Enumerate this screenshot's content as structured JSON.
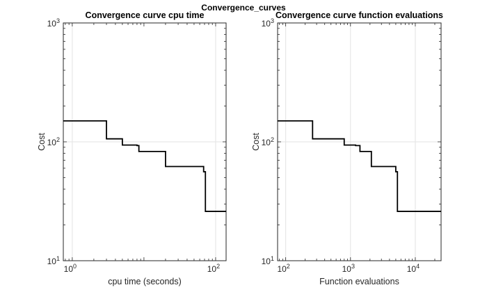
{
  "figure": {
    "suptitle": "Convergence_curves"
  },
  "chart_data": [
    {
      "type": "line",
      "title": "Convergence curve cpu time",
      "xlabel": "cpu time (seconds)",
      "ylabel": "Cost",
      "xscale": "log",
      "yscale": "log",
      "xlim": [
        0.75,
        140
      ],
      "ylim": [
        10,
        1000
      ],
      "xticks": [
        {
          "value": 1,
          "base": "10",
          "exp": "0"
        },
        {
          "value": 100,
          "base": "10",
          "exp": "2"
        }
      ],
      "yticks": [
        {
          "value": 10,
          "base": "10",
          "exp": "1"
        },
        {
          "value": 100,
          "base": "10",
          "exp": "2"
        },
        {
          "value": 1000,
          "base": "10",
          "exp": "3"
        }
      ],
      "grid": true,
      "color": "#000000",
      "x": [
        0.75,
        3,
        3,
        5,
        5,
        8,
        8,
        8.5,
        8.5,
        20,
        20,
        68,
        68,
        72,
        72,
        140
      ],
      "y": [
        150,
        150,
        106,
        106,
        94,
        94,
        93,
        93,
        83,
        83,
        62,
        62,
        56,
        56,
        26,
        26
      ]
    },
    {
      "type": "line",
      "title": "Convergence curve function evaluations",
      "xlabel": "Function evaluations",
      "ylabel": "Cost",
      "xscale": "log",
      "yscale": "log",
      "xlim": [
        75,
        25000
      ],
      "ylim": [
        10,
        1000
      ],
      "xticks": [
        {
          "value": 100,
          "base": "10",
          "exp": "2"
        },
        {
          "value": 1000,
          "base": "10",
          "exp": "3"
        },
        {
          "value": 10000,
          "base": "10",
          "exp": "4"
        }
      ],
      "yticks": [
        {
          "value": 10,
          "base": "10",
          "exp": "1"
        },
        {
          "value": 100,
          "base": "10",
          "exp": "2"
        },
        {
          "value": 1000,
          "base": "10",
          "exp": "3"
        }
      ],
      "grid": true,
      "color": "#000000",
      "x": [
        75,
        260,
        260,
        800,
        800,
        1200,
        1200,
        1400,
        1400,
        2100,
        2100,
        5000,
        5000,
        5300,
        5300,
        25000
      ],
      "y": [
        150,
        150,
        106,
        106,
        94,
        94,
        93,
        93,
        83,
        83,
        62,
        62,
        56,
        56,
        26,
        26
      ]
    }
  ]
}
